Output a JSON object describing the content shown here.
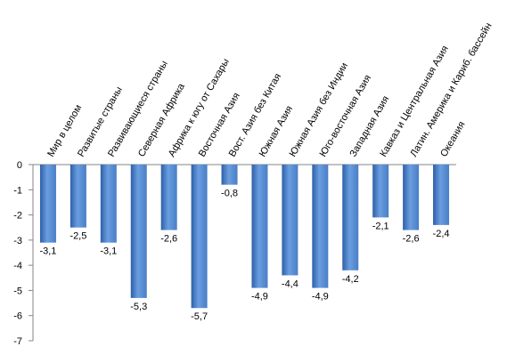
{
  "chart_data": {
    "type": "bar",
    "title": "",
    "xlabel": "",
    "ylabel": "",
    "ylim": [
      -7,
      0
    ],
    "yticks": [
      0,
      -1,
      -2,
      -3,
      -4,
      -5,
      -6,
      -7
    ],
    "grid": false,
    "legend": "none",
    "bar_color": "#4a7ec6",
    "bar_color_light": "#6a9ee0",
    "bar_color_dark": "#2e5fa8",
    "categories": [
      "Мир в целом",
      "Развитые страны",
      "Развивающиеся страны",
      "Северная Африка",
      "Африка к югу от Сахары",
      "Восточная Азия",
      "Вост. Азия без Китая",
      "Южная Азия",
      "Южная Азия без Индии",
      "Юго-восточная Азия",
      "Западная Азия",
      "Кавказ и Центральная Азия",
      "Латин. Америка и Кариб. бассейн",
      "Океания"
    ],
    "values": [
      -3.1,
      -2.5,
      -3.1,
      -5.3,
      -2.6,
      -5.7,
      -0.8,
      -4.9,
      -4.4,
      -4.9,
      -4.2,
      -2.1,
      -2.6,
      -2.4
    ],
    "data_labels": [
      "-3,1",
      "-2,5",
      "-3,1",
      "-5,3",
      "-2,6",
      "-5,7",
      "-0,8",
      "-4,9",
      "-4,4",
      "-4,9",
      "-4,2",
      "-2,1",
      "-2,6",
      "-2,4"
    ],
    "tick_labels": [
      "0",
      "-1",
      "-2",
      "-3",
      "-4",
      "-5",
      "-6",
      "-7"
    ]
  }
}
